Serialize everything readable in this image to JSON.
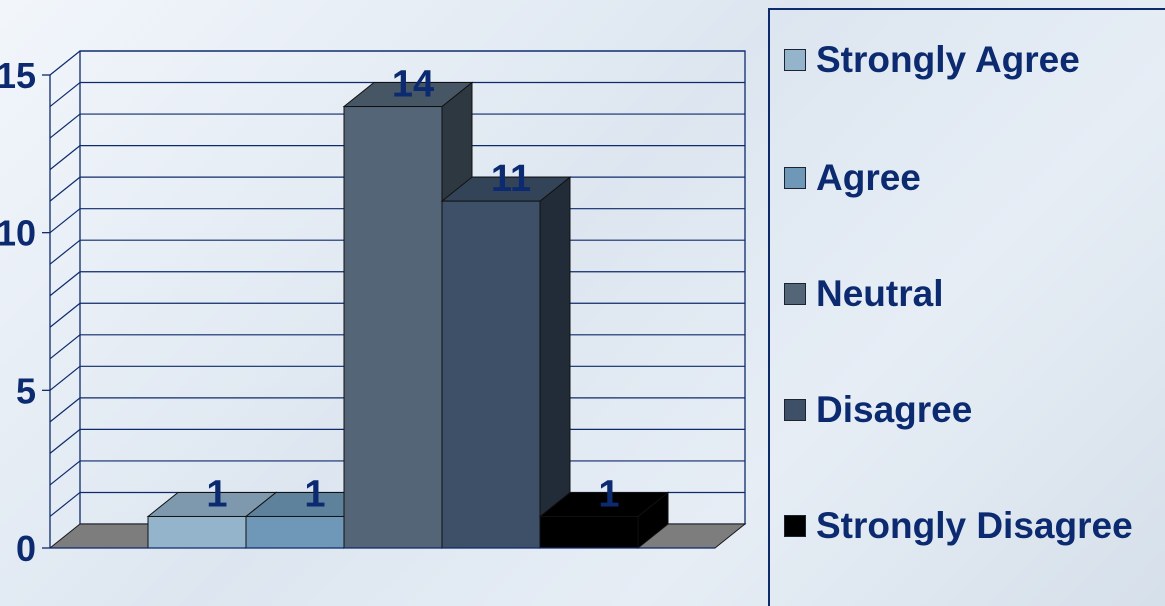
{
  "chart_data": {
    "type": "bar",
    "categories": [
      "Strongly Agree",
      "Agree",
      "Neutral",
      "Disagree",
      "Strongly Disagree"
    ],
    "series": [
      {
        "values": [
          1,
          1,
          14,
          11,
          1
        ]
      }
    ],
    "ylim": [
      0,
      15
    ],
    "yticks": [
      "0",
      "5",
      "10",
      "15"
    ],
    "title": "",
    "xlabel": "",
    "ylabel": "",
    "grid": true,
    "legend_position": "right",
    "colors": [
      "#94b4cb",
      "#6f98b8",
      "#536577",
      "#3d5068",
      "#000000"
    ]
  },
  "legend": {
    "items": [
      {
        "label": "Strongly Agree",
        "color": "#94b4cb"
      },
      {
        "label": "Agree",
        "color": "#6f98b8"
      },
      {
        "label": "Neutral",
        "color": "#536577"
      },
      {
        "label": "Disagree",
        "color": "#3d5068"
      },
      {
        "label": "Strongly Disagree",
        "color": "#000000"
      }
    ]
  }
}
